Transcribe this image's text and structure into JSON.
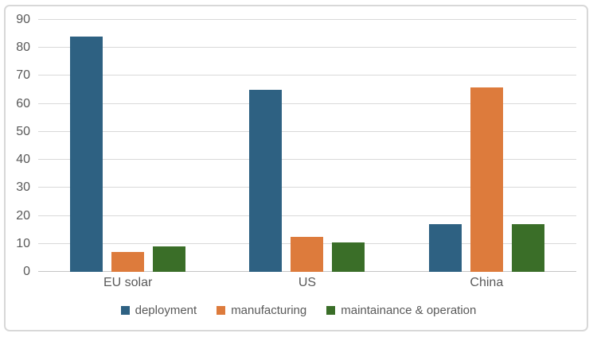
{
  "chart_data": {
    "type": "bar",
    "title": "",
    "xlabel": "",
    "ylabel": "",
    "categories": [
      "EU solar",
      "US",
      "China"
    ],
    "series": [
      {
        "name": "deployment",
        "color": "#2E6182",
        "values": [
          84,
          65,
          17
        ]
      },
      {
        "name": "manufacturing",
        "color": "#DD7B3C",
        "values": [
          7,
          12.5,
          66
        ]
      },
      {
        "name": "maintainance & operation",
        "color": "#3A6E28",
        "values": [
          9,
          10.5,
          17
        ]
      }
    ],
    "ylim": [
      0,
      90
    ],
    "ytick_step": 10,
    "ytick_labels": [
      "0",
      "10",
      "20",
      "30",
      "40",
      "50",
      "60",
      "70",
      "80",
      "90"
    ],
    "grid": true,
    "legend_position": "bottom",
    "colors": {
      "grid": "#D9D9D9",
      "axis": "#C4C4C4",
      "text": "#595959",
      "border": "#D8D8D8",
      "background": "#FFFFFF"
    }
  }
}
